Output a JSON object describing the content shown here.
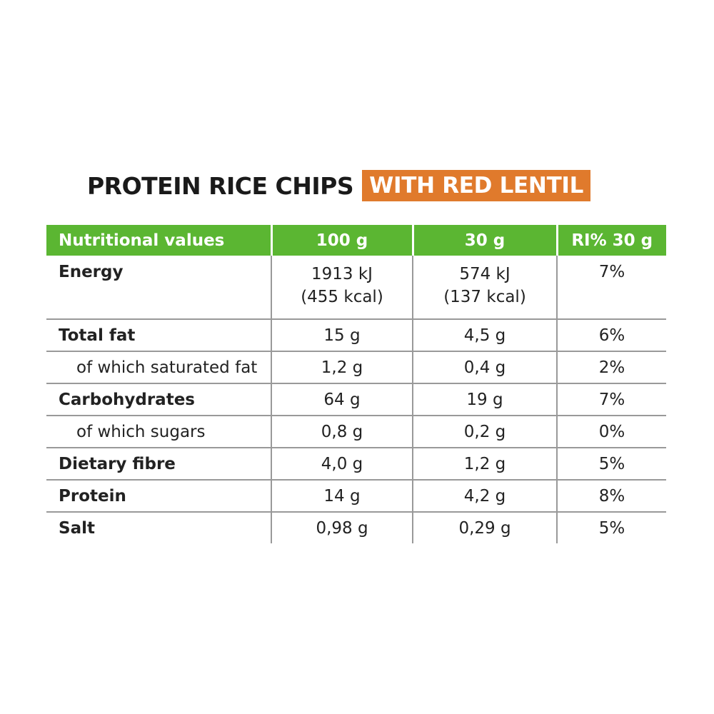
{
  "header": {
    "title": "PROTEIN RICE CHIPS",
    "highlight": "WITH RED LENTIL"
  },
  "table": {
    "columns": [
      "Nutritional values",
      "100 g",
      "30 g",
      "RI% 30 g"
    ],
    "rows": [
      [
        "Energy",
        [
          "1913 kJ",
          "(455 kcal)"
        ],
        [
          "574 kJ",
          "(137 kcal)"
        ],
        "7%"
      ],
      [
        "Total fat",
        "15 g",
        "4,5 g",
        "6%"
      ],
      [
        "of which saturated fat",
        "1,2 g",
        "0,4 g",
        "2%"
      ],
      [
        "Carbohydrates",
        "64 g",
        "19 g",
        "7%"
      ],
      [
        "of which sugars",
        "0,8 g",
        "0,2 g",
        "0%"
      ],
      [
        "Dietary fibre",
        "4,0 g",
        "1,2 g",
        "5%"
      ],
      [
        "Protein",
        "14 g",
        "4,2 g",
        "8%"
      ],
      [
        "Salt",
        "0,98 g",
        "0,29 g",
        "5%"
      ]
    ]
  }
}
